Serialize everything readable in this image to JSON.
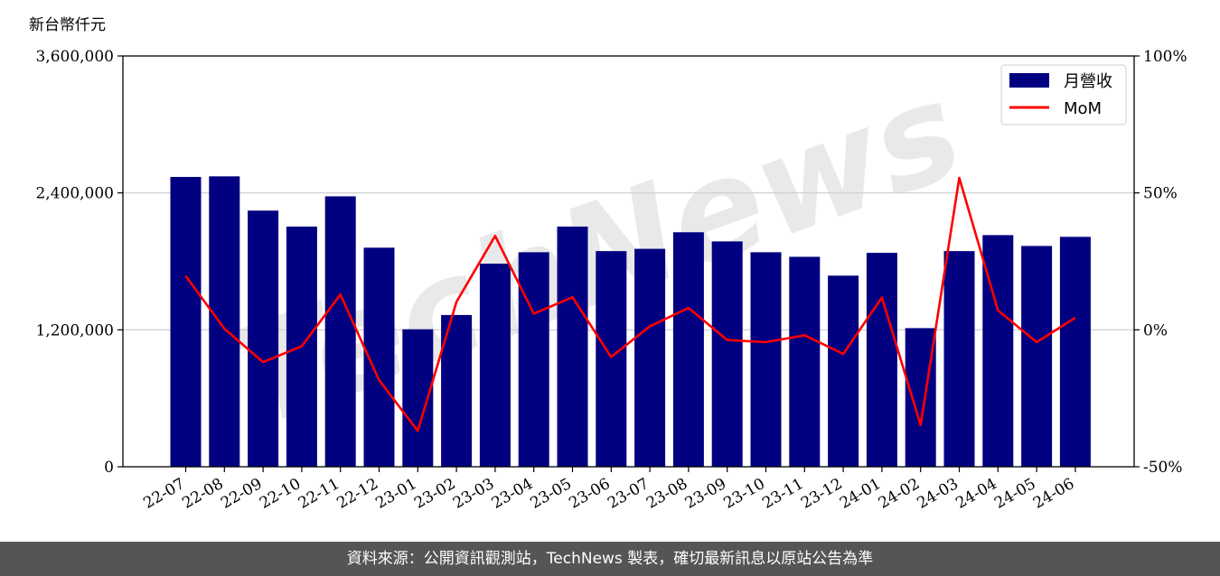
{
  "chart_data": {
    "type": "bar+line",
    "y_unit": "新台幣仟元",
    "categories": [
      "22-07",
      "22-08",
      "22-09",
      "22-10",
      "22-11",
      "22-12",
      "23-01",
      "23-02",
      "23-03",
      "23-04",
      "23-05",
      "23-06",
      "23-07",
      "23-08",
      "23-09",
      "23-10",
      "23-11",
      "23-12",
      "24-01",
      "24-02",
      "24-03",
      "24-04",
      "24-05",
      "24-06"
    ],
    "series": [
      {
        "name": "月營收",
        "axis": "left",
        "kind": "bar",
        "color": "#000080",
        "values": [
          2540000,
          2545000,
          2245000,
          2105000,
          2370000,
          1920000,
          1205000,
          1330000,
          1780000,
          1880000,
          2105000,
          1890000,
          1910000,
          2055000,
          1975000,
          1880000,
          1840000,
          1675000,
          1875000,
          1215000,
          1890000,
          2030000,
          1935000,
          2015000
        ]
      },
      {
        "name": "MoM",
        "axis": "right",
        "kind": "line",
        "color": "#ff0000",
        "values": [
          19.7,
          0.4,
          -11.8,
          -6.0,
          12.9,
          -18.4,
          -36.9,
          10.2,
          34.3,
          5.9,
          11.9,
          -9.9,
          1.3,
          8.0,
          -3.7,
          -4.5,
          -2.0,
          -8.8,
          11.8,
          -34.8,
          55.5,
          7.1,
          -4.5,
          4.4
        ]
      }
    ],
    "y_left": {
      "min": 0,
      "max": 3600000,
      "ticks": [
        "0",
        "1,200,000",
        "2,400,000",
        "3,600,000"
      ],
      "tick_values": [
        0,
        1200000,
        2400000,
        3600000
      ]
    },
    "y_right": {
      "min": -50,
      "max": 100,
      "ticks": [
        "-50%",
        "0%",
        "50%",
        "100%"
      ],
      "tick_values": [
        -50,
        0,
        50,
        100
      ]
    },
    "grid": "horizontal",
    "legend": "top-right"
  },
  "watermark": "TechNews",
  "footer": "資料來源：公開資訊觀測站，TechNews 製表，確切最新訊息以原站公告為準"
}
